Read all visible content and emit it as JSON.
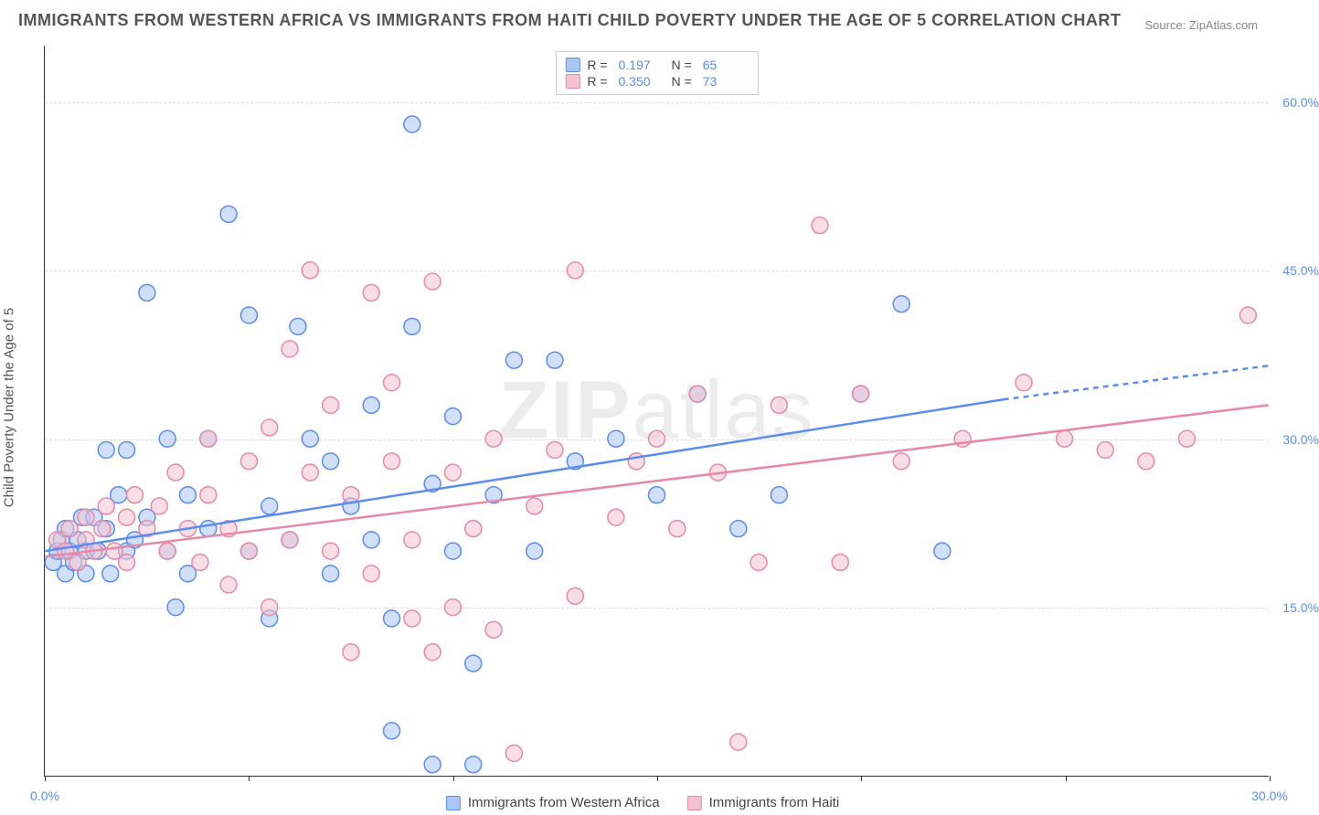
{
  "title": "IMMIGRANTS FROM WESTERN AFRICA VS IMMIGRANTS FROM HAITI CHILD POVERTY UNDER THE AGE OF 5 CORRELATION CHART",
  "source": "Source: ZipAtlas.com",
  "ylabel": "Child Poverty Under the Age of 5",
  "watermark_bold": "ZIP",
  "watermark_thin": "atlas",
  "chart": {
    "type": "scatter-with-regression",
    "xlim": [
      0,
      30
    ],
    "ylim": [
      0,
      65
    ],
    "xtick_positions": [
      0,
      5,
      10,
      15,
      20,
      25,
      30
    ],
    "xtick_labels": {
      "0": "0.0%",
      "30": "30.0%"
    },
    "ytick_positions": [
      15,
      30,
      45,
      60
    ],
    "ytick_labels": {
      "15": "15.0%",
      "30": "30.0%",
      "45": "45.0%",
      "60": "60.0%"
    },
    "background_color": "#ffffff",
    "grid_color": "#dddddd",
    "axis_color": "#333333",
    "tick_label_color": "#5b8def",
    "marker_radius": 9,
    "marker_opacity": 0.55,
    "series": [
      {
        "name": "Immigrants from Western Africa",
        "color_stroke": "#5b8def",
        "color_fill": "#a9c6f5",
        "R": "0.197",
        "N": "65",
        "regression": {
          "x1": 0,
          "y1": 20,
          "x2": 23.5,
          "y2": 33.5,
          "dash_x2": 30,
          "dash_y2": 36.5
        },
        "points": [
          [
            0.2,
            19
          ],
          [
            0.3,
            20
          ],
          [
            0.4,
            21
          ],
          [
            0.5,
            18
          ],
          [
            0.5,
            22
          ],
          [
            0.6,
            20
          ],
          [
            0.7,
            19
          ],
          [
            0.8,
            21
          ],
          [
            0.9,
            23
          ],
          [
            1.0,
            20
          ],
          [
            1.0,
            18
          ],
          [
            1.2,
            23
          ],
          [
            1.3,
            20
          ],
          [
            1.5,
            22
          ],
          [
            1.5,
            29
          ],
          [
            1.6,
            18
          ],
          [
            1.8,
            25
          ],
          [
            2.0,
            20
          ],
          [
            2.0,
            29
          ],
          [
            2.2,
            21
          ],
          [
            2.5,
            43
          ],
          [
            2.5,
            23
          ],
          [
            3.0,
            30
          ],
          [
            3.0,
            20
          ],
          [
            3.2,
            15
          ],
          [
            3.5,
            25
          ],
          [
            3.5,
            18
          ],
          [
            4.0,
            22
          ],
          [
            4.0,
            30
          ],
          [
            4.5,
            50
          ],
          [
            5.0,
            20
          ],
          [
            5.0,
            41
          ],
          [
            5.5,
            24
          ],
          [
            5.5,
            14
          ],
          [
            6.0,
            21
          ],
          [
            6.2,
            40
          ],
          [
            6.5,
            30
          ],
          [
            7.0,
            18
          ],
          [
            7.0,
            28
          ],
          [
            7.5,
            24
          ],
          [
            8.0,
            33
          ],
          [
            8.0,
            21
          ],
          [
            8.5,
            4
          ],
          [
            8.5,
            14
          ],
          [
            9.0,
            58
          ],
          [
            9.0,
            40
          ],
          [
            9.5,
            26
          ],
          [
            9.5,
            1
          ],
          [
            10.0,
            20
          ],
          [
            10.0,
            32
          ],
          [
            10.5,
            10
          ],
          [
            10.5,
            1
          ],
          [
            11.0,
            25
          ],
          [
            11.5,
            37
          ],
          [
            12.0,
            20
          ],
          [
            12.5,
            37
          ],
          [
            13.0,
            28
          ],
          [
            14.0,
            30
          ],
          [
            15.0,
            25
          ],
          [
            16.0,
            34
          ],
          [
            17.0,
            22
          ],
          [
            18.0,
            25
          ],
          [
            20.0,
            34
          ],
          [
            21.0,
            42
          ],
          [
            22.0,
            20
          ]
        ]
      },
      {
        "name": "Immigrants from Haiti",
        "color_stroke": "#e68aa5",
        "color_fill": "#f4c2d0",
        "R": "0.350",
        "N": "73",
        "regression": {
          "x1": 0,
          "y1": 19.5,
          "x2": 30,
          "y2": 33
        },
        "points": [
          [
            0.3,
            21
          ],
          [
            0.5,
            20
          ],
          [
            0.6,
            22
          ],
          [
            0.8,
            19
          ],
          [
            1.0,
            21
          ],
          [
            1.0,
            23
          ],
          [
            1.2,
            20
          ],
          [
            1.4,
            22
          ],
          [
            1.5,
            24
          ],
          [
            1.7,
            20
          ],
          [
            2.0,
            23
          ],
          [
            2.0,
            19
          ],
          [
            2.2,
            25
          ],
          [
            2.5,
            22
          ],
          [
            2.8,
            24
          ],
          [
            3.0,
            20
          ],
          [
            3.2,
            27
          ],
          [
            3.5,
            22
          ],
          [
            3.8,
            19
          ],
          [
            4.0,
            30
          ],
          [
            4.0,
            25
          ],
          [
            4.5,
            17
          ],
          [
            4.5,
            22
          ],
          [
            5.0,
            28
          ],
          [
            5.0,
            20
          ],
          [
            5.5,
            31
          ],
          [
            5.5,
            15
          ],
          [
            6.0,
            21
          ],
          [
            6.0,
            38
          ],
          [
            6.5,
            27
          ],
          [
            6.5,
            45
          ],
          [
            7.0,
            20
          ],
          [
            7.0,
            33
          ],
          [
            7.5,
            11
          ],
          [
            7.5,
            25
          ],
          [
            8.0,
            43
          ],
          [
            8.0,
            18
          ],
          [
            8.5,
            28
          ],
          [
            8.5,
            35
          ],
          [
            9.0,
            21
          ],
          [
            9.0,
            14
          ],
          [
            9.5,
            44
          ],
          [
            9.5,
            11
          ],
          [
            10.0,
            27
          ],
          [
            10.0,
            15
          ],
          [
            10.5,
            22
          ],
          [
            11.0,
            30
          ],
          [
            11.0,
            13
          ],
          [
            11.5,
            2
          ],
          [
            12.0,
            24
          ],
          [
            12.5,
            29
          ],
          [
            13.0,
            16
          ],
          [
            13.0,
            45
          ],
          [
            14.0,
            23
          ],
          [
            14.5,
            28
          ],
          [
            15.0,
            30
          ],
          [
            15.5,
            22
          ],
          [
            16.0,
            34
          ],
          [
            16.5,
            27
          ],
          [
            17.0,
            3
          ],
          [
            17.5,
            19
          ],
          [
            18.0,
            33
          ],
          [
            19.0,
            49
          ],
          [
            19.5,
            19
          ],
          [
            20.0,
            34
          ],
          [
            21.0,
            28
          ],
          [
            22.5,
            30
          ],
          [
            25.0,
            30
          ],
          [
            26.0,
            29
          ],
          [
            27.0,
            28
          ],
          [
            28.0,
            30
          ],
          [
            29.5,
            41
          ],
          [
            24.0,
            35
          ]
        ]
      }
    ]
  },
  "legend_top": {
    "r_label": "R =",
    "n_label": "N ="
  },
  "legend_bottom": [
    {
      "label": "Immigrants from Western Africa",
      "fill": "#a9c6f5",
      "stroke": "#5b8def"
    },
    {
      "label": "Immigrants from Haiti",
      "fill": "#f4c2d0",
      "stroke": "#e68aa5"
    }
  ]
}
